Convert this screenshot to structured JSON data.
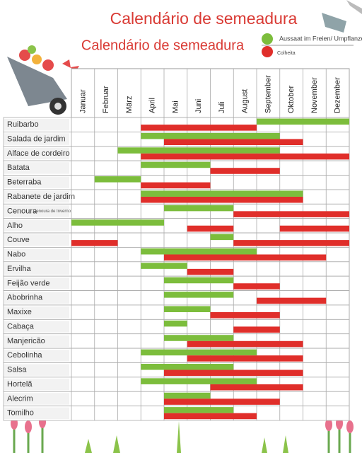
{
  "header": {
    "title": "Calendário de semeadura",
    "subtitle": "Calendário de semeadura",
    "legend": {
      "sow": "Aussaat im Freien/ Umpflanzen",
      "harvest": "Colheita"
    }
  },
  "colors": {
    "sow": "#7cbd3c",
    "harvest": "#e02e2a"
  },
  "months": [
    "Januar",
    "Februar",
    "März",
    "April",
    "Mai",
    "Juni",
    "Juli",
    "August",
    "September",
    "Oktober",
    "November",
    "Dezember"
  ],
  "rows": [
    {
      "label": "Ruibarbo",
      "sow": [
        [
          9,
          12
        ]
      ],
      "harvest": [
        [
          4,
          8
        ]
      ]
    },
    {
      "label": "Salada de jardim",
      "sow": [
        [
          4,
          9
        ]
      ],
      "harvest": [
        [
          5,
          10
        ]
      ]
    },
    {
      "label": "Alface de cordeiro",
      "sow": [
        [
          3,
          9
        ]
      ],
      "harvest": [
        [
          4,
          12
        ]
      ]
    },
    {
      "label": "Batata",
      "sow": [
        [
          4,
          6
        ]
      ],
      "harvest": [
        [
          7,
          9
        ]
      ]
    },
    {
      "label": "Beterraba",
      "sow": [
        [
          2,
          3
        ]
      ],
      "harvest": [
        [
          4,
          6
        ]
      ]
    },
    {
      "label": "Rabanete de jardim",
      "sow": [
        [
          4,
          10
        ]
      ],
      "harvest": [
        [
          4,
          10
        ]
      ]
    },
    {
      "label": "Cenoura",
      "note": "Cenoura de Inverno",
      "sow": [
        [
          5,
          7
        ]
      ],
      "harvest": [
        [
          8,
          12
        ]
      ]
    },
    {
      "label": "Alho",
      "sow": [
        [
          1,
          4
        ]
      ],
      "harvest": [
        [
          6,
          7
        ],
        [
          10,
          12
        ]
      ]
    },
    {
      "label": "Couve",
      "sow": [
        [
          7,
          7
        ]
      ],
      "harvest": [
        [
          1,
          2
        ],
        [
          8,
          12
        ]
      ]
    },
    {
      "label": "Nabo",
      "sow": [
        [
          4,
          8
        ]
      ],
      "harvest": [
        [
          5,
          11
        ]
      ]
    },
    {
      "label": "Ervilha",
      "sow": [
        [
          4,
          5
        ]
      ],
      "harvest": [
        [
          6,
          7
        ]
      ]
    },
    {
      "label": "Feijão verde",
      "sow": [
        [
          5,
          7
        ]
      ],
      "harvest": [
        [
          8,
          9
        ]
      ]
    },
    {
      "label": "Abobrinha",
      "sow": [
        [
          5,
          7
        ]
      ],
      "harvest": [
        [
          9,
          11
        ]
      ]
    },
    {
      "label": "Maxixe",
      "sow": [
        [
          5,
          6
        ]
      ],
      "harvest": [
        [
          7,
          9
        ]
      ]
    },
    {
      "label": "Cabaça",
      "sow": [
        [
          5,
          5
        ]
      ],
      "harvest": [
        [
          8,
          9
        ]
      ]
    },
    {
      "label": "Manjericão",
      "sow": [
        [
          5,
          7
        ]
      ],
      "harvest": [
        [
          6,
          10
        ]
      ]
    },
    {
      "label": "Cebolinha",
      "sow": [
        [
          4,
          8
        ]
      ],
      "harvest": [
        [
          6,
          10
        ]
      ]
    },
    {
      "label": "Salsa",
      "sow": [
        [
          4,
          7
        ]
      ],
      "harvest": [
        [
          5,
          10
        ]
      ]
    },
    {
      "label": "Hortelã",
      "sow": [
        [
          4,
          8
        ]
      ],
      "harvest": [
        [
          7,
          10
        ]
      ]
    },
    {
      "label": "Alecrim",
      "sow": [
        [
          5,
          6
        ]
      ],
      "harvest": [
        [
          5,
          9
        ]
      ]
    },
    {
      "label": "Tomilho",
      "sow": [
        [
          5,
          7
        ]
      ],
      "harvest": [
        [
          5,
          8
        ]
      ]
    }
  ]
}
